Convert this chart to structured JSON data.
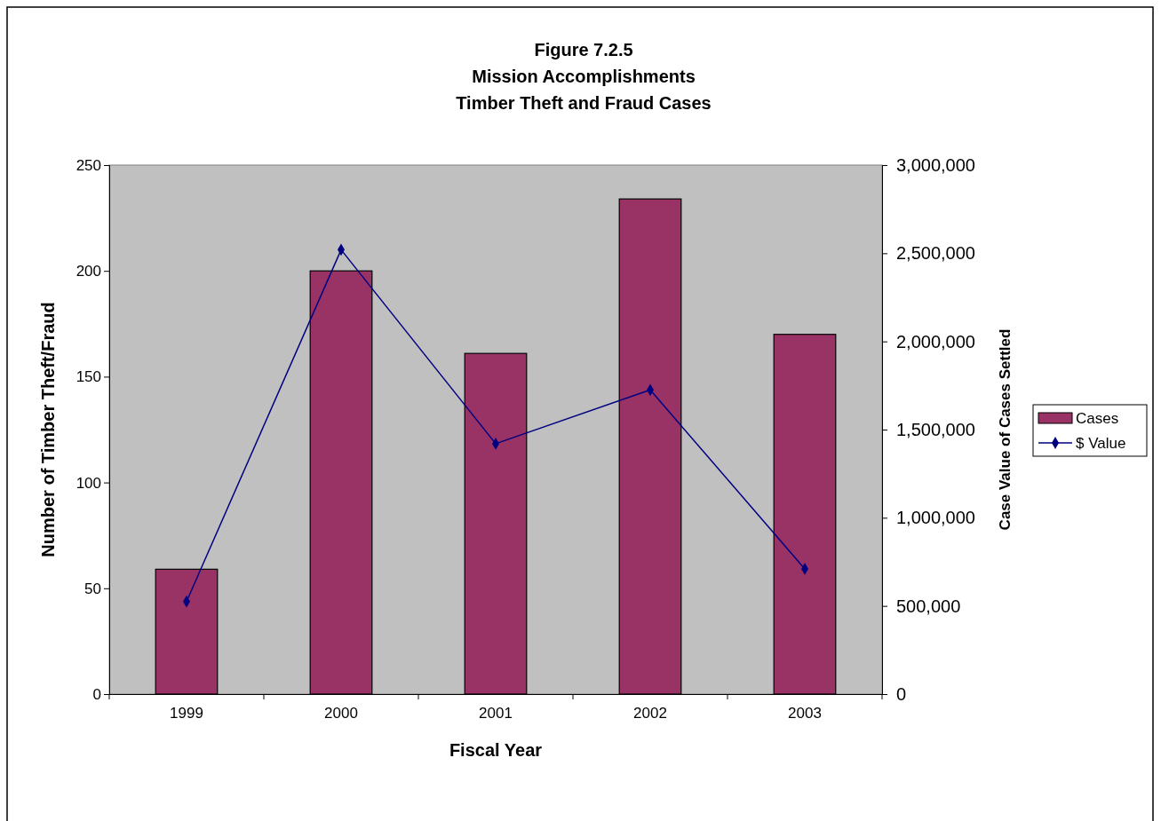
{
  "chart_data": {
    "type": "bar",
    "title": "Figure 7.2.5\nMission Accomplishments\nTimber Theft and Fraud Cases",
    "xlabel": "Fiscal Year",
    "ylabel": "Number of Timber Theft/Fraud",
    "y2label": "Case Value of Cases Settled",
    "categories": [
      "1999",
      "2000",
      "2001",
      "2002",
      "2003"
    ],
    "series": [
      {
        "name": "Cases",
        "color": "#993366",
        "values": [
          59,
          200,
          161,
          234,
          170
        ]
      },
      {
        "name": "$ Value",
        "type": "line",
        "axis": "y2",
        "color": "#000080",
        "marker": "diamond",
        "values": [
          525000,
          2520000,
          1420000,
          1725000,
          710000
        ]
      }
    ],
    "ylim": [
      0,
      250
    ],
    "yticks": [
      0,
      50,
      100,
      150,
      200,
      250
    ],
    "y2lim": [
      0,
      3000000
    ],
    "y2ticks": [
      {
        "value": 0,
        "label": "0"
      },
      {
        "value": 500000,
        "label": "500,000"
      },
      {
        "value": 1000000,
        "label": "1,000,000"
      },
      {
        "value": 1500000,
        "label": "1,500,000"
      },
      {
        "value": 2000000,
        "label": "2,000,000"
      },
      {
        "value": 2500000,
        "label": "2,500,000"
      },
      {
        "value": 3000000,
        "label": "3,000,000"
      }
    ],
    "grid": false,
    "legend": "right"
  }
}
